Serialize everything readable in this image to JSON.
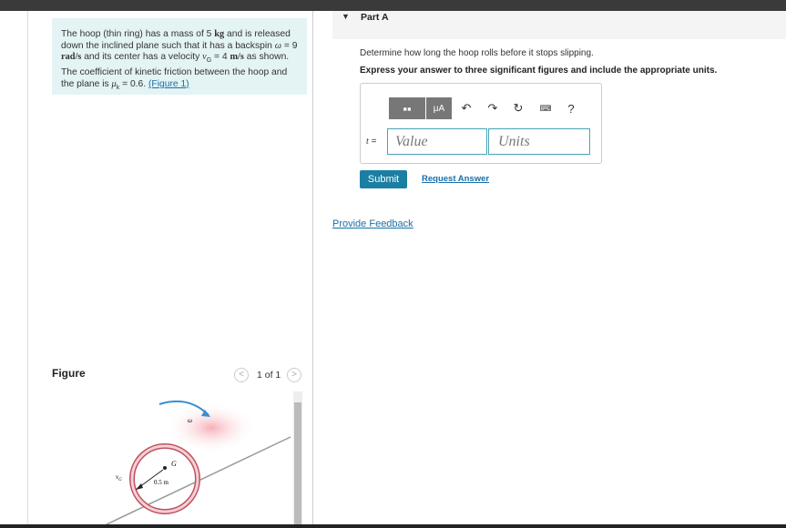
{
  "problem": {
    "segments": [
      "The hoop (thin ring) has a mass of 5 ",
      "kg",
      " and is released down the inclined plane such that it has a backspin ",
      "ω",
      " = 9 ",
      "rad/s",
      " and its center has a velocity ",
      "v",
      "G",
      " = 4 ",
      "m/s",
      " as shown. The coefficient of kinetic friction between the hoop and the plane is ",
      "μ",
      "k",
      " = 0.6. ",
      "(Figure 1)"
    ]
  },
  "figure": {
    "title": "Figure",
    "pager": "1 of 1",
    "labels": {
      "omega": "ω",
      "center": "G",
      "velocity": "v",
      "velocity_sub": "G",
      "radius": "0.5 m"
    }
  },
  "part": {
    "title": "Part A",
    "question": "Determine how long the hoop rolls before it stops slipping.",
    "instruction": "Express your answer to three significant figures and include the appropriate units.",
    "toolbar": {
      "units_button": "μA",
      "help": "?"
    },
    "variable": "t",
    "equals": "=",
    "value_placeholder": "Value",
    "units_placeholder": "Units",
    "submit": "Submit",
    "request": "Request Answer"
  },
  "feedback": "Provide Feedback"
}
